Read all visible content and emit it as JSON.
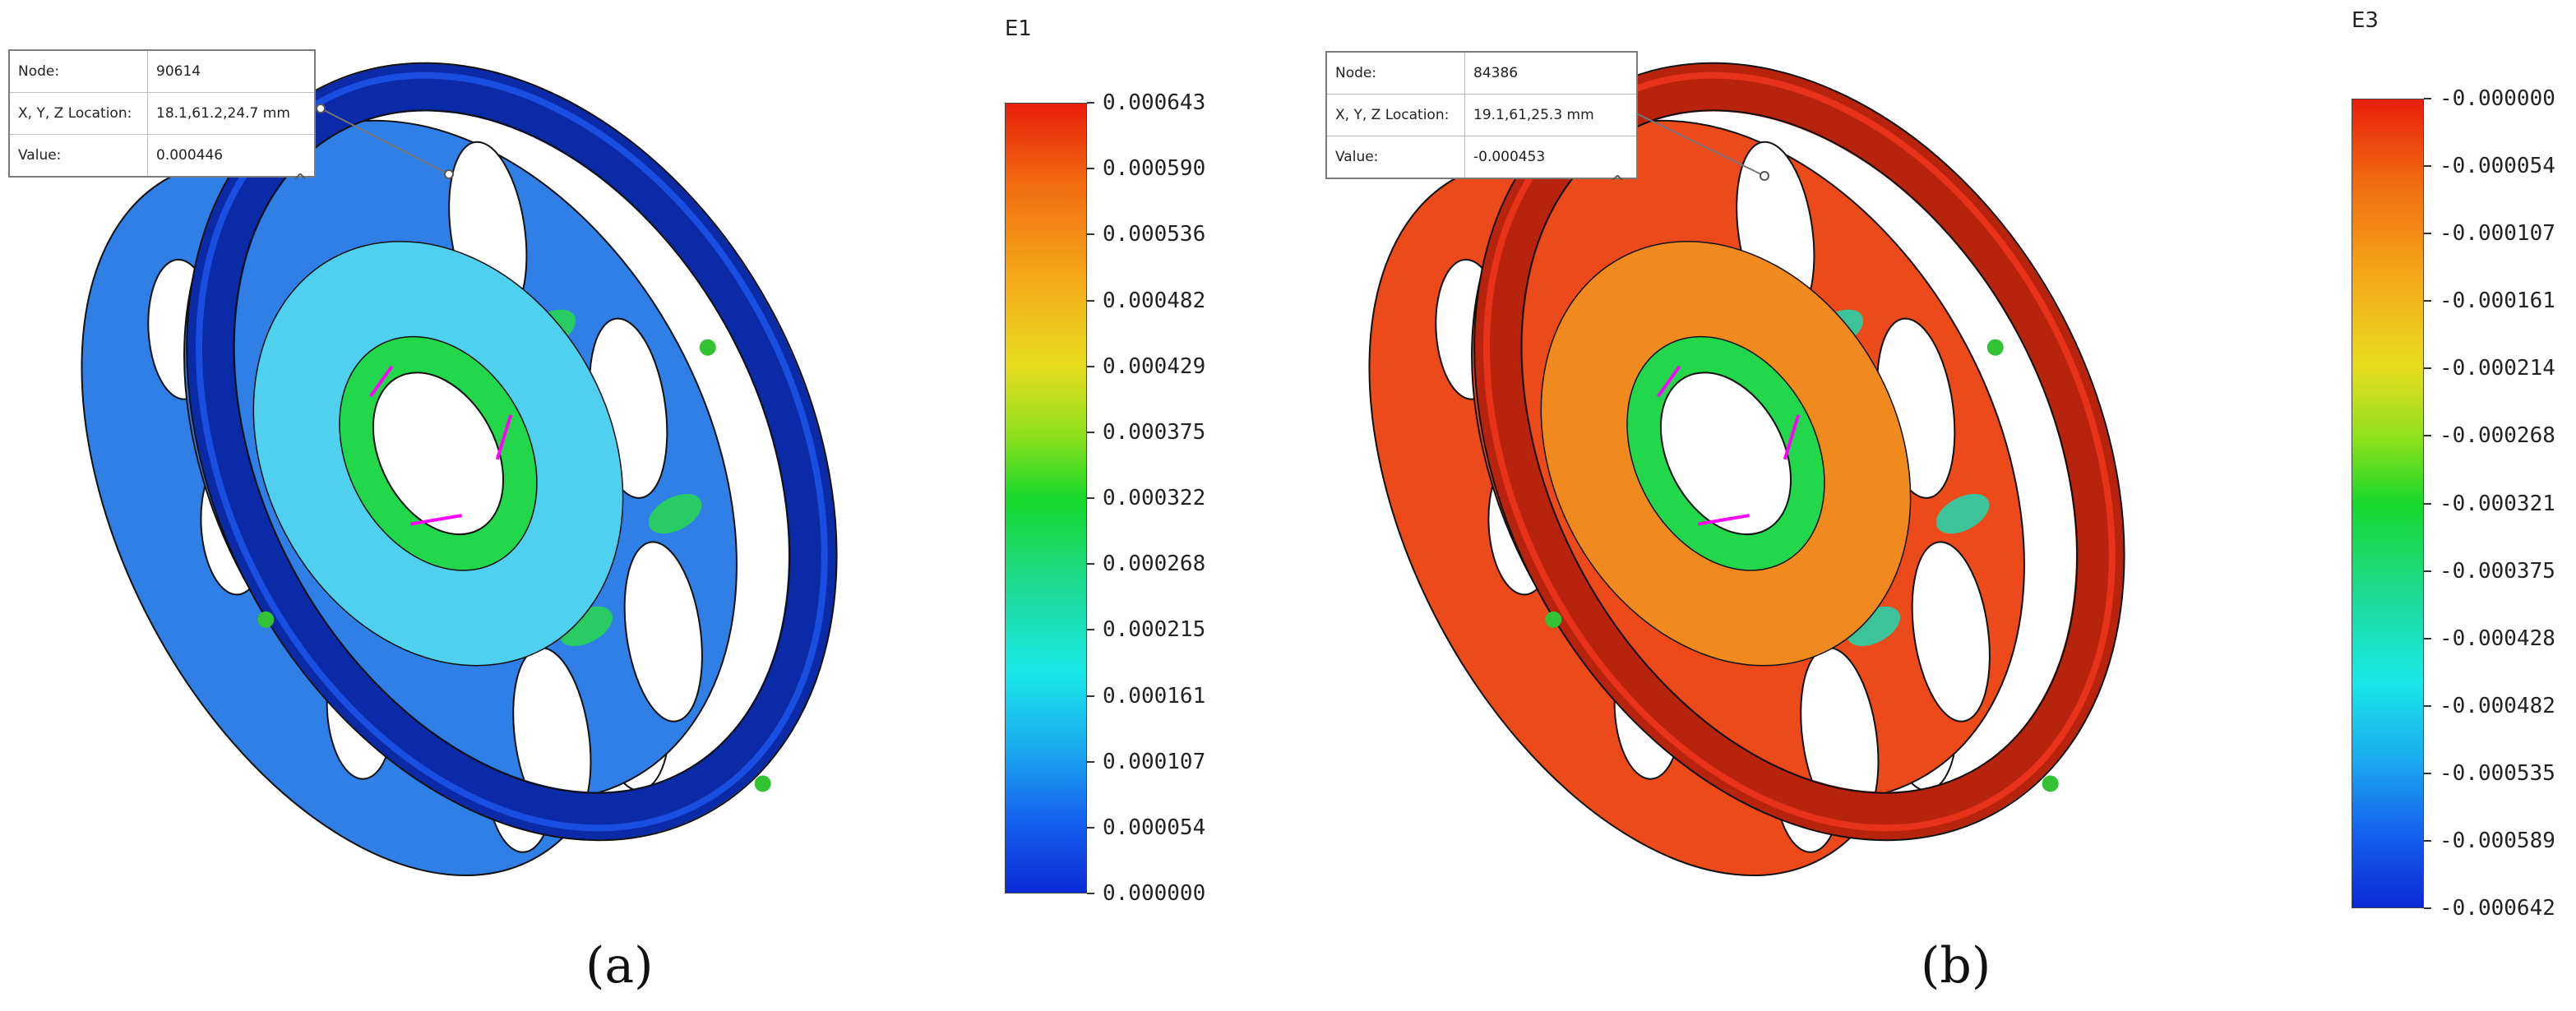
{
  "panels": [
    {
      "caption": "(a)",
      "legend_title": "E1",
      "probe": {
        "node_label": "Node:",
        "node_value": "90614",
        "location_label": "X, Y, Z Location:",
        "location_value": "18.1,61.2,24.7 mm",
        "value_label": "Value:",
        "value_value": "0.000446"
      },
      "ticks": [
        "0.000643",
        "0.000590",
        "0.000536",
        "0.000482",
        "0.000429",
        "0.000375",
        "0.000322",
        "0.000268",
        "0.000215",
        "0.000161",
        "0.000107",
        "0.000054",
        "0.000000"
      ],
      "colors": {
        "ring": "#1a4ee0",
        "face": "#2f7fe6",
        "hub": "#4fd0ef",
        "hub_inner": "#22d84a",
        "hotspot": "#27d84c",
        "edge": "#0b2aa8"
      }
    },
    {
      "caption": "(b)",
      "legend_title": "E3",
      "probe": {
        "node_label": "Node:",
        "node_value": "84386",
        "location_label": "X, Y, Z Location:",
        "location_value": "19.1,61,25.3 mm",
        "value_label": "Value:",
        "value_value": "-0.000453"
      },
      "ticks": [
        "-0.000000",
        "-0.000054",
        "-0.000107",
        "-0.000161",
        "-0.000214",
        "-0.000268",
        "-0.000321",
        "-0.000375",
        "-0.000428",
        "-0.000482",
        "-0.000535",
        "-0.000589",
        "-0.000642"
      ],
      "colors": {
        "ring": "#e6331a",
        "face": "#ec4a1a",
        "hub": "#f08a1e",
        "hub_inner": "#22d84a",
        "hotspot": "#1fd8b0",
        "edge": "#b8230e"
      }
    }
  ]
}
